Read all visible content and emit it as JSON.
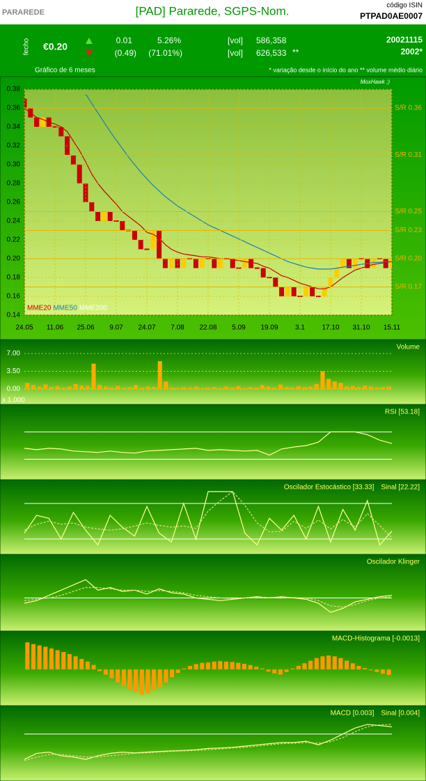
{
  "header": {
    "brand": "PARAREDE",
    "title": "[PAD] Pararede, SGPS-Nom.",
    "isin_label": "código ISIN",
    "isin": "PTPAD0AE0007"
  },
  "quote": {
    "close_label": "fecho",
    "price": "€0.20",
    "day_change": "0.01",
    "day_change_pct": "5.26%",
    "vol_label": "[vol]",
    "volume": "586,358",
    "ytd_change": "(0.49)",
    "ytd_change_pct": "(71.01%)",
    "avg_vol_label": "[vol]",
    "avg_volume": "626,533",
    "avg_volume_mark": "**",
    "date": "20021115",
    "year": "2002*",
    "period": "Gráfico de 6 meses",
    "footnote": "* variação desde o início do ano  ** volume médio diário"
  },
  "chart_data": [
    {
      "type": "candlestick",
      "watermark": "MoxHawk ;)",
      "categories": [
        "24.05",
        null,
        null,
        null,
        null,
        "11.06",
        null,
        null,
        null,
        null,
        "25.06",
        null,
        null,
        null,
        null,
        "9.07",
        null,
        null,
        null,
        null,
        "24.07",
        null,
        null,
        null,
        null,
        "7.08",
        null,
        null,
        null,
        null,
        "22.08",
        null,
        null,
        null,
        null,
        "5.09",
        null,
        null,
        null,
        null,
        "19.09",
        null,
        null,
        null,
        null,
        "3.1",
        null,
        null,
        null,
        null,
        "17.10",
        null,
        null,
        null,
        null,
        "31.10",
        null,
        null,
        null,
        null,
        "15.11"
      ],
      "open": [
        0.37,
        0.36,
        0.35,
        0.34,
        0.35,
        0.34,
        0.34,
        0.33,
        0.31,
        0.3,
        0.28,
        0.26,
        0.25,
        0.24,
        0.25,
        0.24,
        0.24,
        0.23,
        0.23,
        0.22,
        0.21,
        0.21,
        0.23,
        0.2,
        0.19,
        0.2,
        0.19,
        0.2,
        0.2,
        0.19,
        0.2,
        0.2,
        0.19,
        0.2,
        0.2,
        0.19,
        0.19,
        0.2,
        0.19,
        0.19,
        0.18,
        0.18,
        0.17,
        0.16,
        0.17,
        0.16,
        0.16,
        0.17,
        0.16,
        0.16,
        0.17,
        0.18,
        0.19,
        0.2,
        0.19,
        0.2,
        0.2,
        0.19,
        0.2,
        0.2,
        0.19
      ],
      "close": [
        0.36,
        0.35,
        0.34,
        0.35,
        0.34,
        0.34,
        0.33,
        0.31,
        0.3,
        0.28,
        0.26,
        0.25,
        0.24,
        0.25,
        0.24,
        0.24,
        0.23,
        0.23,
        0.22,
        0.21,
        0.21,
        0.23,
        0.2,
        0.19,
        0.2,
        0.19,
        0.2,
        0.2,
        0.19,
        0.2,
        0.2,
        0.19,
        0.2,
        0.2,
        0.19,
        0.19,
        0.2,
        0.19,
        0.19,
        0.18,
        0.18,
        0.17,
        0.16,
        0.17,
        0.16,
        0.16,
        0.17,
        0.16,
        0.16,
        0.17,
        0.18,
        0.19,
        0.2,
        0.19,
        0.2,
        0.2,
        0.19,
        0.2,
        0.2,
        0.19,
        0.2
      ],
      "up_color": "#ffcc00",
      "down_color": "#cc0000",
      "series": [
        {
          "name": "MME20",
          "color": "#cc0000",
          "values": [
            0.36,
            0.355,
            0.35,
            0.348,
            0.345,
            0.343,
            0.34,
            0.335,
            0.325,
            0.315,
            0.303,
            0.29,
            0.28,
            0.272,
            0.265,
            0.258,
            0.25,
            0.245,
            0.24,
            0.235,
            0.228,
            0.226,
            0.222,
            0.215,
            0.21,
            0.207,
            0.205,
            0.204,
            0.203,
            0.202,
            0.202,
            0.201,
            0.2,
            0.2,
            0.199,
            0.198,
            0.197,
            0.196,
            0.195,
            0.192,
            0.19,
            0.186,
            0.182,
            0.18,
            0.177,
            0.174,
            0.172,
            0.17,
            0.168,
            0.168,
            0.17,
            0.175,
            0.18,
            0.184,
            0.188,
            0.19,
            0.192,
            0.194,
            0.195,
            0.196,
            0.197
          ]
        },
        {
          "name": "MME50",
          "color": "#1f7fb0",
          "values": [
            null,
            null,
            null,
            null,
            null,
            null,
            null,
            null,
            null,
            null,
            0.375,
            0.365,
            0.355,
            0.345,
            0.335,
            0.326,
            0.317,
            0.308,
            0.3,
            0.292,
            0.285,
            0.278,
            0.272,
            0.266,
            0.261,
            0.256,
            0.252,
            0.248,
            0.244,
            0.24,
            0.236,
            0.233,
            0.23,
            0.227,
            0.224,
            0.221,
            0.218,
            0.215,
            0.212,
            0.209,
            0.206,
            0.203,
            0.2,
            0.197,
            0.195,
            0.193,
            0.191,
            0.19,
            0.189,
            0.189,
            0.189,
            0.19,
            0.191,
            0.192,
            0.193,
            0.194,
            0.195,
            0.196,
            0.196,
            0.197,
            0.197
          ]
        },
        {
          "name": "MME200",
          "color": "#ffffff",
          "values": [
            null,
            null,
            null,
            null,
            null,
            null,
            null,
            null,
            null,
            null,
            null,
            null,
            null,
            null,
            null,
            null,
            null,
            null,
            null,
            null,
            null,
            null,
            null,
            null,
            null,
            null,
            null,
            null,
            null,
            null,
            null,
            null,
            null,
            null,
            null,
            null,
            null,
            null,
            null,
            null,
            null,
            null,
            null,
            null,
            null,
            null,
            null,
            null,
            null,
            null,
            null,
            null,
            null,
            null,
            null,
            null,
            null,
            null,
            null,
            null,
            null
          ]
        }
      ],
      "ylim": [
        0.14,
        0.38
      ],
      "yticks": [
        0.14,
        0.16,
        0.18,
        {
          "value": 0.2,
          "label": "0.20"
        },
        0.22,
        0.24,
        0.26,
        0.28,
        {
          "value": 0.3,
          "label": "0.30"
        },
        0.32,
        0.34,
        0.36,
        0.38
      ],
      "grid": true,
      "sr_color": "#e8b400",
      "sr_lines": [
        {
          "value": 0.36,
          "label": "S/R 0.36"
        },
        {
          "value": 0.31,
          "label": "S/R 0.31"
        },
        {
          "value": 0.25,
          "label": "S/R 0.25"
        },
        {
          "value": 0.23,
          "label": "S/R 0.23"
        },
        {
          "value": 0.2,
          "label": "S/R 0.20"
        },
        {
          "value": 0.17,
          "label": "S/R 0.17"
        }
      ]
    },
    {
      "type": "bar",
      "title": "Volume",
      "unit": "x 1.000",
      "color": "#ffaa00",
      "values": [
        1.2,
        0.8,
        0.5,
        0.9,
        0.4,
        0.6,
        0.3,
        0.5,
        1.0,
        0.7,
        0.6,
        5.0,
        0.8,
        0.5,
        0.3,
        0.6,
        0.2,
        0.4,
        0.8,
        0.3,
        0.5,
        0.4,
        5.5,
        1.5,
        0.3,
        0.2,
        0.4,
        0.3,
        0.5,
        0.2,
        0.3,
        0.4,
        0.2,
        0.5,
        0.3,
        0.6,
        0.2,
        0.4,
        0.3,
        0.8,
        0.5,
        0.3,
        0.9,
        0.4,
        0.3,
        0.6,
        0.4,
        0.5,
        1.0,
        3.5,
        2.0,
        1.5,
        1.2,
        0.5,
        0.6,
        0.4,
        0.7,
        0.5,
        0.3,
        0.4,
        0.5
      ],
      "ylim": [
        0,
        7
      ],
      "yticks": [
        {
          "value": 0,
          "label": "0.00"
        },
        {
          "value": 3.5,
          "label": "3.50"
        },
        {
          "value": 7,
          "label": "7.00"
        }
      ],
      "grid": true
    },
    {
      "type": "line",
      "title": "RSI [53.18]",
      "color": "#ffff99",
      "ylim": [
        0,
        100
      ],
      "levels": [
        70,
        30
      ],
      "values": [
        46,
        44,
        46,
        45,
        42,
        41,
        40,
        42,
        40,
        39,
        42,
        43,
        44,
        45,
        46,
        43,
        44,
        43,
        42,
        43,
        36,
        45,
        48,
        50,
        55,
        70,
        70,
        70,
        66,
        58,
        53.18
      ]
    },
    {
      "type": "line",
      "title": "Oscilador Estocástico [33.33]",
      "signal_label": "Sinal [22.22]",
      "ylim": [
        0,
        100
      ],
      "levels": [
        80,
        20
      ],
      "series": [
        {
          "color": "#ffff99",
          "values": [
            30,
            60,
            55,
            20,
            65,
            35,
            10,
            60,
            40,
            25,
            75,
            30,
            15,
            80,
            20,
            100,
            100,
            100,
            30,
            10,
            55,
            35,
            60,
            20,
            75,
            15,
            70,
            35,
            85,
            10,
            33.33
          ]
        },
        {
          "color": "#dddd88",
          "style": "dashed",
          "values": [
            35,
            45,
            50,
            45,
            47,
            40,
            37,
            35,
            37,
            42,
            47,
            43,
            40,
            42,
            38,
            67,
            85,
            100,
            77,
            47,
            32,
            33,
            50,
            38,
            52,
            37,
            53,
            40,
            63,
            43,
            22.22
          ]
        }
      ]
    },
    {
      "type": "line",
      "title": "Oscilador Klinger",
      "ylim": [
        -1,
        1
      ],
      "levels": [
        0
      ],
      "series": [
        {
          "color": "#ffff99",
          "values": [
            -0.2,
            -0.1,
            0.1,
            0.3,
            0.5,
            0.7,
            0.3,
            0.4,
            0.25,
            0.3,
            0.15,
            0.35,
            0.2,
            0.15,
            0,
            -0.05,
            -0.1,
            -0.05,
            0,
            0.05,
            0,
            0.05,
            0,
            -0.05,
            -0.2,
            -0.55,
            -0.4,
            -0.15,
            -0.05,
            0.05,
            0.1
          ]
        },
        {
          "color": "#dddd88",
          "style": "dashed",
          "values": [
            -0.1,
            -0.05,
            0,
            0.1,
            0.25,
            0.4,
            0.4,
            0.35,
            0.3,
            0.3,
            0.25,
            0.28,
            0.25,
            0.2,
            0.1,
            0.05,
            0,
            -0.02,
            0,
            0.02,
            0.02,
            0.03,
            0.02,
            0,
            -0.1,
            -0.3,
            -0.35,
            -0.25,
            -0.1,
            0,
            0.05
          ]
        }
      ]
    },
    {
      "type": "bar",
      "title": "MACD-Histograma [-0.0013]",
      "color": "#ff9900",
      "ylim": [
        -0.008,
        0.008
      ],
      "values": [
        0.0062,
        0.0058,
        0.0055,
        0.0052,
        0.0048,
        0.0044,
        0.004,
        0.0035,
        0.003,
        0.0024,
        0.0018,
        0.001,
        -0.0004,
        -0.0012,
        -0.002,
        -0.003,
        -0.0038,
        -0.0045,
        -0.0052,
        -0.0058,
        -0.0055,
        -0.0048,
        -0.004,
        -0.003,
        -0.0018,
        -0.0008,
        0.0002,
        0.0008,
        0.0012,
        0.0015,
        0.0016,
        0.0018,
        0.0019,
        0.0018,
        0.0017,
        0.0015,
        0.0013,
        0.001,
        0.0006,
        0.0002,
        -0.0005,
        -0.0009,
        -0.0012,
        -0.0006,
        0.0002,
        0.0008,
        0.0014,
        0.002,
        0.0026,
        0.003,
        0.0032,
        0.003,
        0.0026,
        0.002,
        0.0014,
        0.0008,
        0.0003,
        -0.0002,
        -0.0006,
        -0.001,
        -0.0013
      ]
    },
    {
      "type": "line",
      "title": "MACD [0.003]",
      "signal_label": "Sinal [0.004]",
      "ylim": [
        -0.018,
        0.01
      ],
      "levels": [
        0
      ],
      "series": [
        {
          "color": "#ffff99",
          "values": [
            -0.0105,
            -0.008,
            -0.0075,
            -0.009,
            -0.0095,
            -0.0105,
            -0.009,
            -0.008,
            -0.0075,
            -0.0078,
            -0.0075,
            -0.0072,
            -0.007,
            -0.0068,
            -0.0065,
            -0.006,
            -0.0058,
            -0.0055,
            -0.005,
            -0.0045,
            -0.004,
            -0.0035,
            -0.0035,
            -0.003,
            -0.0045,
            -0.0025,
            0,
            0.0025,
            0.004,
            0.0035,
            0.003
          ]
        },
        {
          "color": "#dddd88",
          "style": "dashed",
          "values": [
            -0.011,
            -0.0095,
            -0.0085,
            -0.0085,
            -0.009,
            -0.0095,
            -0.0095,
            -0.009,
            -0.0085,
            -0.008,
            -0.0078,
            -0.0075,
            -0.0072,
            -0.007,
            -0.0068,
            -0.0065,
            -0.0062,
            -0.0058,
            -0.0055,
            -0.005,
            -0.0045,
            -0.004,
            -0.0038,
            -0.0035,
            -0.0038,
            -0.0032,
            -0.0015,
            0.001,
            0.003,
            0.0038,
            0.004
          ]
        }
      ]
    }
  ]
}
